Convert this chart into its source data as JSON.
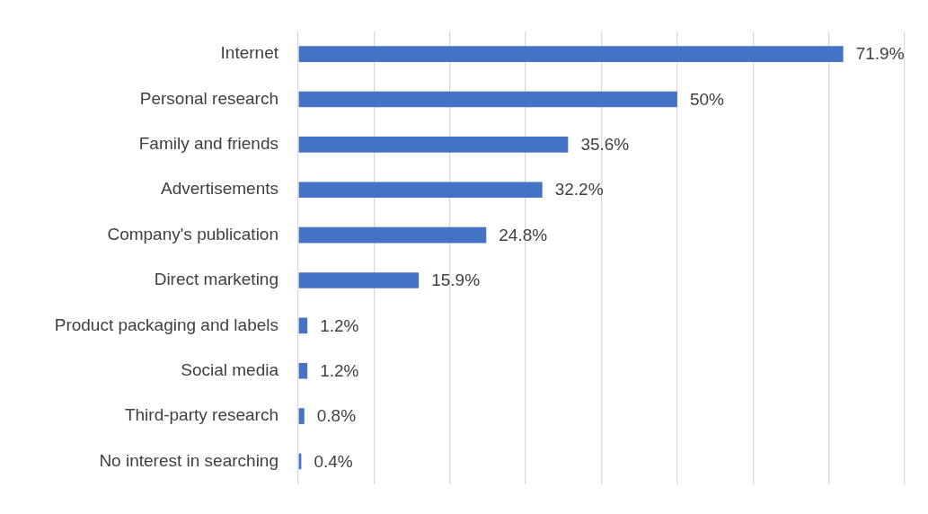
{
  "chart_data": {
    "type": "bar",
    "orientation": "horizontal",
    "categories": [
      "Internet",
      "Personal research",
      "Family and friends",
      "Advertisements",
      "Company's publication",
      "Direct marketing",
      "Product packaging and labels",
      "Social media",
      "Third-party research",
      "No interest in searching"
    ],
    "values": [
      71.9,
      50,
      35.6,
      32.2,
      24.8,
      15.9,
      1.2,
      1.2,
      0.8,
      0.4
    ],
    "value_labels": [
      "71.9%",
      "50%",
      "35.6%",
      "32.2%",
      "24.8%",
      "15.9%",
      "1.2%",
      "1.2%",
      "0.8%",
      "0.4%"
    ],
    "color": "#4472c4",
    "grid": true,
    "tick_labels": "y"
  }
}
